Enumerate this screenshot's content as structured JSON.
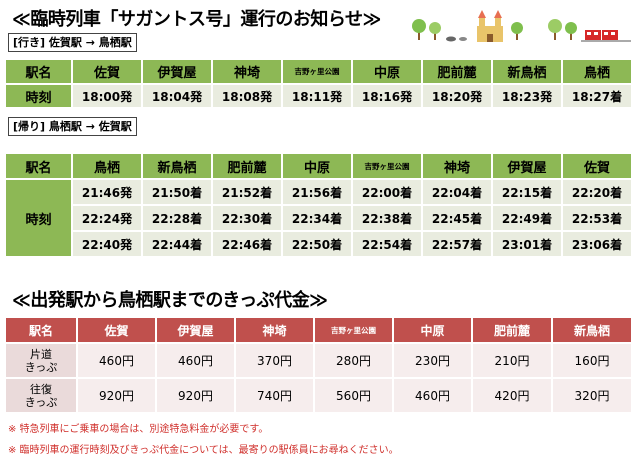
{
  "section1_title": "≪臨時列車「サガントス号」運行のお知らせ≫",
  "outbound": {
    "direction_label": "[行き] 佐賀駅 → 鳥栖駅",
    "header_label": "駅名",
    "stations": [
      "佐賀",
      "伊賀屋",
      "神埼",
      "吉野ヶ里公園",
      "中原",
      "肥前麓",
      "新鳥栖",
      "鳥栖"
    ],
    "time_label": "時刻",
    "times": [
      "18:00発",
      "18:04発",
      "18:08発",
      "18:11発",
      "18:16発",
      "18:20発",
      "18:23発",
      "18:27着"
    ]
  },
  "inbound": {
    "direction_label": "[帰り] 鳥栖駅 → 佐賀駅",
    "header_label": "駅名",
    "stations": [
      "鳥栖",
      "新鳥栖",
      "肥前麓",
      "中原",
      "吉野ヶ里公園",
      "神埼",
      "伊賀屋",
      "佐賀"
    ],
    "time_label": "時刻",
    "rows": [
      [
        "21:46発",
        "21:50着",
        "21:52着",
        "21:56着",
        "22:00着",
        "22:04着",
        "22:15着",
        "22:20着"
      ],
      [
        "22:24発",
        "22:28着",
        "22:30着",
        "22:34着",
        "22:38着",
        "22:45着",
        "22:49着",
        "22:53着"
      ],
      [
        "22:40発",
        "22:44着",
        "22:46着",
        "22:50着",
        "22:54着",
        "22:57着",
        "23:01着",
        "23:06着"
      ]
    ]
  },
  "section2_title": "≪出発駅から鳥栖駅までのきっぷ代金≫",
  "fares": {
    "header_label": "駅名",
    "stations": [
      "佐賀",
      "伊賀屋",
      "神埼",
      "吉野ヶ里公園",
      "中原",
      "肥前麓",
      "新鳥栖"
    ],
    "oneway_label_1": "片道",
    "oneway_label_2": "きっぷ",
    "oneway": [
      "460円",
      "460円",
      "370円",
      "280円",
      "230円",
      "210円",
      "160円"
    ],
    "roundtrip_label_1": "往復",
    "roundtrip_label_2": "きっぷ",
    "roundtrip": [
      "920円",
      "920円",
      "740円",
      "560円",
      "460円",
      "420円",
      "320円"
    ]
  },
  "notes": [
    "※ 特急列車にご乗車の場合は、別途特急料金が必要です。",
    "※ 臨時列車の運行時刻及びきっぷ代金については、最寄りの駅係員にお尋ねください。"
  ],
  "colors": {
    "timetable_header": "#8db855",
    "timetable_cell": "#e9ecdf",
    "fare_header": "#c0504d",
    "fare_label": "#eadada",
    "fare_cell": "#f6eded",
    "note_text": "#d0312d"
  },
  "illustration_icons": [
    "tree-icon",
    "castle-icon",
    "train-icon"
  ]
}
